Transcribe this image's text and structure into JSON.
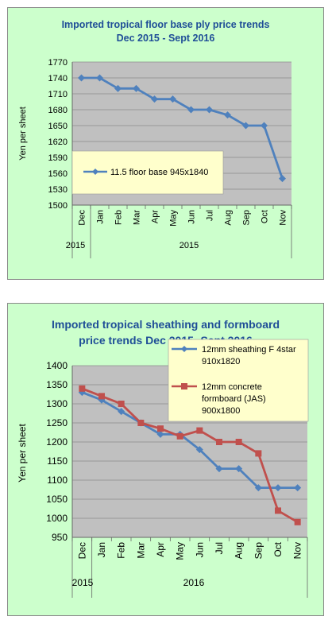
{
  "chart_data": [
    {
      "type": "line",
      "title_line1": "Imported tropical floor base ply price trends",
      "title_line2": "Dec 2015 - Sept 2016",
      "ylabel": "Yen per sheet",
      "ylim": [
        1500,
        1770
      ],
      "yticks": [
        1770,
        1740,
        1710,
        1680,
        1650,
        1620,
        1590,
        1560,
        1530,
        1500
      ],
      "categories": [
        "Dec",
        "Jan",
        "Feb",
        "Mar",
        "Apr",
        "May",
        "Jun",
        "Jul",
        "Aug",
        "Sep",
        "Oct",
        "Nov"
      ],
      "year_labels": [
        "2015",
        "2015"
      ],
      "grid": true,
      "legend_position": "inside-bottom-left",
      "series": [
        {
          "name": "11.5 floor base 945x1840",
          "color": "#4f81bd",
          "marker": "diamond",
          "values": [
            1740,
            1740,
            1720,
            1720,
            1700,
            1700,
            1680,
            1680,
            1670,
            1650,
            1650,
            1550
          ]
        }
      ]
    },
    {
      "type": "line",
      "title_line1": "Imported tropical sheathing and formboard",
      "title_line2": "price trends Dec 2015 -Sept 2016",
      "ylabel": "Yen per sheet",
      "ylim": [
        950,
        1400
      ],
      "yticks": [
        1400,
        1350,
        1300,
        1250,
        1200,
        1150,
        1100,
        1050,
        1000,
        950
      ],
      "categories": [
        "Dec",
        "Jan",
        "Feb",
        "Mar",
        "Apr",
        "May",
        "Jun",
        "Jul",
        "Aug",
        "Sep",
        "Oct",
        "Nov"
      ],
      "year_labels": [
        "2015",
        "2016"
      ],
      "grid": true,
      "legend_position": "top-right",
      "series": [
        {
          "name_line1": "12mm sheathing F 4star",
          "name_line2": "910x1820",
          "color": "#4f81bd",
          "marker": "diamond",
          "values": [
            1330,
            1310,
            1280,
            1250,
            1220,
            1220,
            1180,
            1130,
            1130,
            1080,
            1080,
            1080
          ]
        },
        {
          "name_line1": "12mm concrete",
          "name_line2": "formboard (JAS)",
          "name_line3": "900x1800",
          "color": "#c0504d",
          "marker": "square",
          "values": [
            1340,
            1320,
            1300,
            1250,
            1235,
            1215,
            1230,
            1200,
            1200,
            1170,
            1020,
            990
          ]
        }
      ]
    }
  ]
}
